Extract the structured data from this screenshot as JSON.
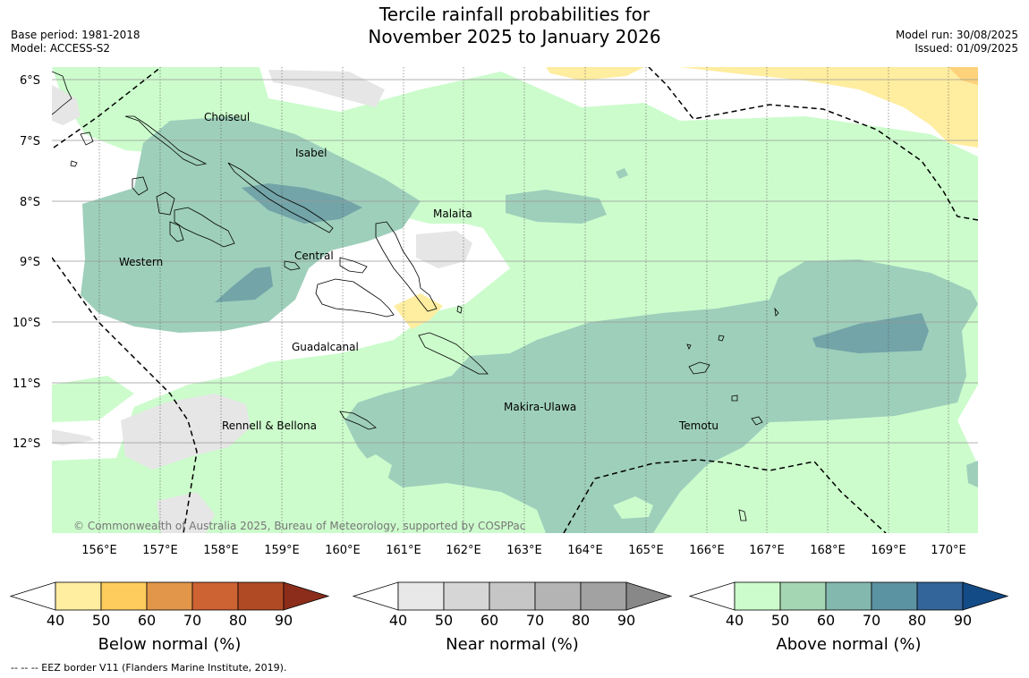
{
  "title": {
    "line1": "Tercile rainfall probabilities for",
    "line2": "November 2025 to January 2026"
  },
  "meta": {
    "base_period": "Base period: 1981-2018",
    "model": "Model: ACCESS-S2",
    "model_run": "Model run: 30/08/2025",
    "issued": "Issued: 01/09/2025"
  },
  "map": {
    "lat_labels": [
      "6°S",
      "7°S",
      "8°S",
      "9°S",
      "10°S",
      "11°S",
      "12°S"
    ],
    "lon_labels": [
      "156°E",
      "157°E",
      "158°E",
      "159°E",
      "160°E",
      "161°E",
      "162°E",
      "163°E",
      "164°E",
      "165°E",
      "166°E",
      "167°E",
      "168°E",
      "169°E",
      "170°E"
    ],
    "places": [
      "Choiseul",
      "Isabel",
      "Malaita",
      "Western",
      "Central",
      "Guadalcanal",
      "Rennell & Bellona",
      "Makira-Ulawa",
      "Temotu"
    ],
    "copyright": "© Commonwealth of Australia 2025, Bureau of Meteorology, supported by COSPPac"
  },
  "colorbars": [
    {
      "title": "Below normal (%)",
      "ticks": [
        "40",
        "50",
        "60",
        "70",
        "80",
        "90"
      ],
      "colors": [
        "#ffeda0",
        "#fecc5c",
        "#e1964a",
        "#cd6233",
        "#b04a25",
        "#8b2d1a"
      ]
    },
    {
      "title": "Near normal (%)",
      "ticks": [
        "40",
        "50",
        "60",
        "70",
        "80",
        "90"
      ],
      "colors": [
        "#e8e8e8",
        "#d6d6d6",
        "#c6c6c6",
        "#b4b4b4",
        "#a2a2a2",
        "#888888"
      ]
    },
    {
      "title": "Above normal (%)",
      "ticks": [
        "40",
        "50",
        "60",
        "70",
        "80",
        "90"
      ],
      "colors": [
        "#ccfccc",
        "#a4d6b4",
        "#83b8ae",
        "#5c93a2",
        "#33659a",
        "#134b86"
      ]
    }
  ],
  "footnote": "--  --  -- EEZ border V11 (Flanders Marine Institute, 2019).",
  "colors": {
    "above_40": "#ccfccc",
    "above_50": "#9ecfbb",
    "above_60": "#72a4a8",
    "near_40": "#e6e6e6",
    "below_40": "#ffeda0",
    "below_50": "#fed27a"
  }
}
